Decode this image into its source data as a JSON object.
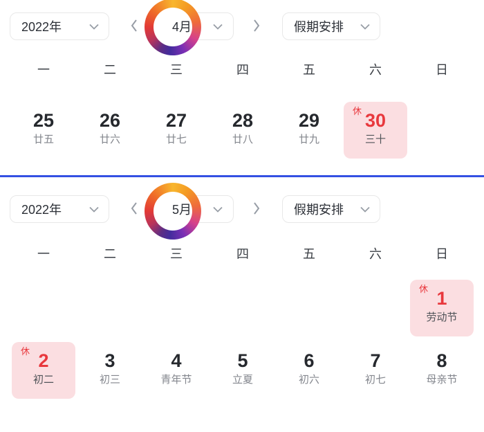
{
  "colors": {
    "accent_red": "#e8383d",
    "holiday_pink_bg": "#fbdee1",
    "divider_blue": "#3350e3",
    "select_border": "#e8e8e8",
    "text_dark": "#26292e",
    "text_gray": "#83868d",
    "logo_ring": [
      "#f8b62d",
      "#e23a36",
      "#7a2fb5",
      "#432c9c"
    ]
  },
  "months": [
    {
      "year_select": {
        "value": "2022年"
      },
      "month_select": {
        "value": "4月"
      },
      "holiday_select": {
        "label": "假期安排"
      },
      "weekdays": [
        "一",
        "二",
        "三",
        "四",
        "五",
        "六",
        "日"
      ],
      "rows": [
        [
          {
            "day": "25",
            "sub": "廿五"
          },
          {
            "day": "26",
            "sub": "廿六"
          },
          {
            "day": "27",
            "sub": "廿七"
          },
          {
            "day": "28",
            "sub": "廿八"
          },
          {
            "day": "29",
            "sub": "廿九"
          },
          {
            "day": "30",
            "sub": "三十",
            "holiday": true,
            "badge": "休"
          },
          null
        ]
      ]
    },
    {
      "year_select": {
        "value": "2022年"
      },
      "month_select": {
        "value": "5月"
      },
      "holiday_select": {
        "label": "假期安排"
      },
      "weekdays": [
        "一",
        "二",
        "三",
        "四",
        "五",
        "六",
        "日"
      ],
      "rows": [
        [
          null,
          null,
          null,
          null,
          null,
          null,
          {
            "day": "1",
            "sub": "劳动节",
            "holiday": true,
            "badge": "休"
          }
        ],
        [
          {
            "day": "2",
            "sub": "初二",
            "holiday": true,
            "badge": "休"
          },
          {
            "day": "3",
            "sub": "初三"
          },
          {
            "day": "4",
            "sub": "青年节"
          },
          {
            "day": "5",
            "sub": "立夏"
          },
          {
            "day": "6",
            "sub": "初六"
          },
          {
            "day": "7",
            "sub": "初七"
          },
          {
            "day": "8",
            "sub": "母亲节"
          }
        ]
      ]
    }
  ]
}
